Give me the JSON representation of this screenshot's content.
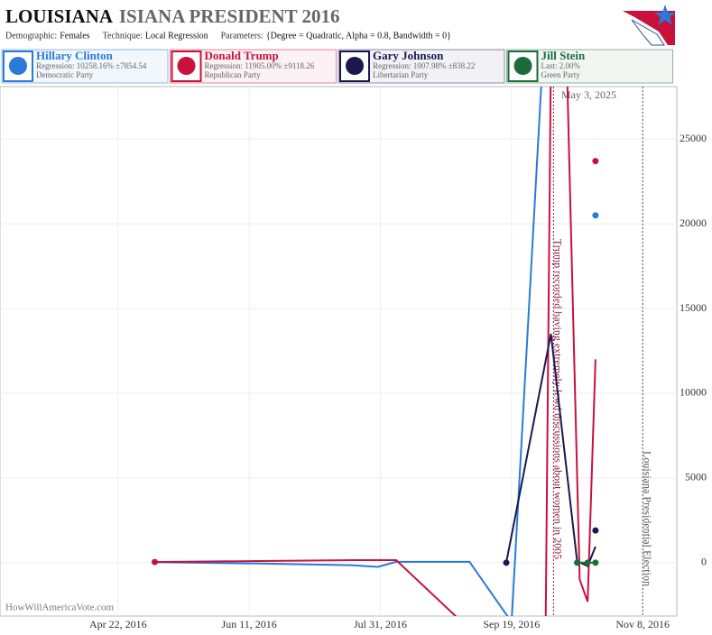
{
  "chart_data": {
    "type": "line",
    "title": [
      "LOUISIANA",
      "ISIANA PRESIDENT 2016"
    ],
    "subtitle": [
      {
        "label": "Demographic:",
        "value": "Females"
      },
      {
        "label": "Technique:",
        "value": "Local Regression"
      },
      {
        "label": "Parameters:",
        "value": "{Degree = Quadratic, Alpha = 0.8, Bandwidth = 0}"
      }
    ],
    "date": "May 3, 2025",
    "source": "HowWillAmericaVote.com",
    "xlim": [
      "2016-03-08",
      "2016-11-21"
    ],
    "xticks": [
      {
        "value": "2016-04-22",
        "label": "Apr 22, 2016"
      },
      {
        "value": "2016-06-11",
        "label": "Jun 11, 2016"
      },
      {
        "value": "2016-07-31",
        "label": "Jul 31, 2016"
      },
      {
        "value": "2016-09-19",
        "label": "Sep 19, 2016"
      },
      {
        "value": "2016-11-08",
        "label": "Nov 8, 2016"
      }
    ],
    "ylim": [
      -3150,
      28100
    ],
    "yticks": [
      0,
      5000,
      10000,
      15000,
      20000,
      25000
    ],
    "grid": true,
    "series": [
      {
        "name": "Hillary Clinton",
        "detail": "Regression: 10258.16% ±7854.54",
        "party": "Democratic Party",
        "color": "#2a7ad8",
        "x": [
          "2016-05-06",
          "2016-06-15",
          "2016-07-20",
          "2016-07-30",
          "2016-08-06",
          "2016-09-03",
          "2016-09-19",
          "2016-10-01"
        ],
        "values": [
          30,
          -50,
          -150,
          -250,
          50,
          50,
          -3500,
          30000
        ],
        "markers": [
          {
            "x": "2016-10-21",
            "value": 20500
          }
        ]
      },
      {
        "name": "Donald Trump",
        "detail": "Regression: 11905.00% ±9118.26",
        "party": "Republican Party",
        "color": "#c8123c",
        "x": [
          "2016-05-06",
          "2016-06-15",
          "2016-07-20",
          "2016-08-06",
          "2016-08-29",
          "2016-09-10",
          "2016-10-02",
          "2016-10-04",
          "2016-10-08",
          "2016-10-10",
          "2016-10-15",
          "2016-10-18",
          "2016-10-21"
        ],
        "values": [
          40,
          100,
          150,
          150,
          -3200,
          null,
          -3500,
          30000,
          null,
          30000,
          -1000,
          -2300,
          12000
        ],
        "markers": [
          {
            "x": "2016-05-06",
            "value": 40
          },
          {
            "x": "2016-10-21",
            "value": 23700
          }
        ]
      },
      {
        "name": "Gary Johnson",
        "detail": "Regression: 1007.98% ±838.22",
        "party": "Libertarian Party",
        "color": "#1b1850",
        "x": [
          "2016-09-17",
          "2016-10-04",
          "2016-10-14",
          "2016-10-18",
          "2016-10-21"
        ],
        "values": [
          0,
          13500,
          100,
          -200,
          950
        ],
        "markers": [
          {
            "x": "2016-09-17",
            "value": 0
          },
          {
            "x": "2016-10-21",
            "value": 1900
          }
        ]
      },
      {
        "name": "Jill Stein",
        "detail": "Last: 2.00%",
        "party": "Green Party",
        "color": "#1d6b3b",
        "x": [
          "2016-10-14",
          "2016-10-21"
        ],
        "values": [
          0,
          0
        ],
        "markers": [
          {
            "x": "2016-10-14",
            "value": 0
          },
          {
            "x": "2016-10-18",
            "value": 0
          },
          {
            "x": "2016-10-21",
            "value": 0
          }
        ]
      }
    ],
    "annotations": [
      {
        "x": "2016-10-05",
        "text": "Trump recorded having extremely lewd discussions about women in 2005",
        "color": "#8b1a3a"
      },
      {
        "x": "2016-11-08",
        "text": "Louisiana Presidential Election",
        "color": "#555555"
      }
    ]
  }
}
